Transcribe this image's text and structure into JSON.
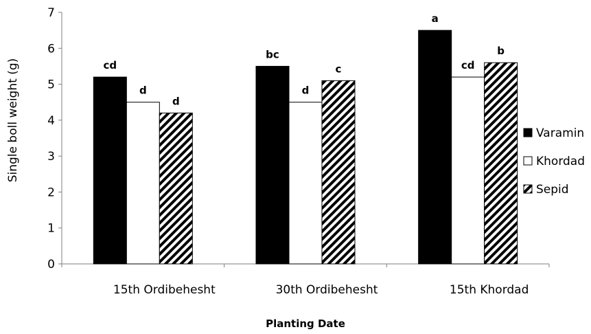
{
  "chart_data": {
    "type": "bar",
    "title": "",
    "xlabel": "Planting Date",
    "ylabel": "Single boll weight (g)",
    "ylim": [
      0,
      7
    ],
    "yticks": [
      "0",
      "1",
      "2",
      "3",
      "4",
      "5",
      "6",
      "7"
    ],
    "categories": [
      "15th Ordibehesht",
      "30th Ordibehesht",
      "15th Khordad"
    ],
    "series": [
      {
        "name": "Varamin",
        "values": [
          5.2,
          5.5,
          6.5
        ],
        "labels": [
          "cd",
          "bc",
          "a"
        ],
        "fill": "solid",
        "color": "#000000"
      },
      {
        "name": "Khordad",
        "values": [
          4.5,
          4.5,
          5.2
        ],
        "labels": [
          "d",
          "d",
          "cd"
        ],
        "fill": "white",
        "color": "#ffffff"
      },
      {
        "name": "Sepid",
        "values": [
          4.2,
          5.1,
          5.6
        ],
        "labels": [
          "d",
          "c",
          "b"
        ],
        "fill": "hatched",
        "color": "#000000"
      }
    ],
    "legend_position": "right",
    "grid": false
  }
}
